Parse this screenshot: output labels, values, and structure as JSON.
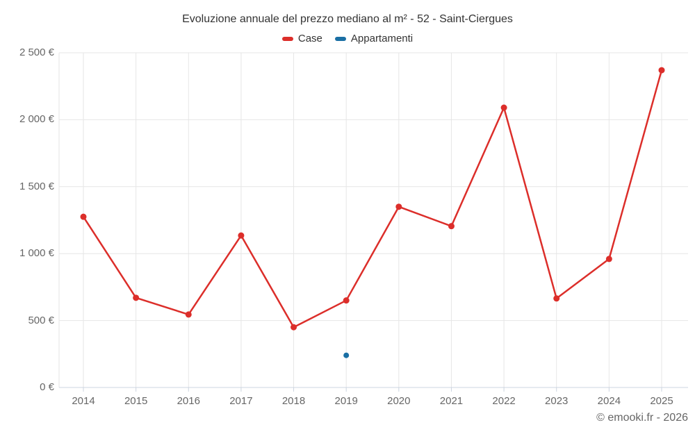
{
  "title": "Evoluzione annuale del prezzo mediano al m² - 52 - Saint-Ciergues",
  "footer": "© emooki.fr - 2026",
  "legend": {
    "items": [
      {
        "label": "Case",
        "color": "#dc2e2a"
      },
      {
        "label": "Appartamenti",
        "color": "#1a6fa4"
      }
    ]
  },
  "colors": {
    "grid": "#e6e6e6",
    "axis": "#ccd4e0",
    "title_text": "#333333",
    "label_text": "#666666",
    "case_red": "#dc2e2a",
    "appartamenti_blue": "#1a6fa4"
  },
  "chart_data": {
    "type": "line",
    "title": "Evoluzione annuale del prezzo mediano al m² - 52 - Saint-Ciergues",
    "categories": [
      "2014",
      "2015",
      "2016",
      "2017",
      "2018",
      "2019",
      "2020",
      "2021",
      "2022",
      "2023",
      "2024",
      "2025"
    ],
    "series": [
      {
        "name": "Case",
        "color": "#dc2e2a",
        "marker_radius": 4.5,
        "values": [
          1275,
          670,
          545,
          1135,
          450,
          650,
          1350,
          1205,
          2090,
          665,
          960,
          2370
        ]
      },
      {
        "name": "Appartamenti",
        "color": "#1a6fa4",
        "marker_radius": 4,
        "values": [
          null,
          null,
          null,
          null,
          null,
          240,
          null,
          null,
          null,
          null,
          null,
          null
        ]
      }
    ],
    "xlabel": "",
    "ylabel": "",
    "ylim": [
      0,
      2500
    ],
    "yticks": [
      0,
      500,
      1000,
      1500,
      2000,
      2500
    ],
    "ytick_labels": [
      "0 €",
      "500 €",
      "1 000 €",
      "1 500 €",
      "2 000 €",
      "2 500 €"
    ],
    "grid": true,
    "legend_position": "top",
    "unit": "€"
  }
}
